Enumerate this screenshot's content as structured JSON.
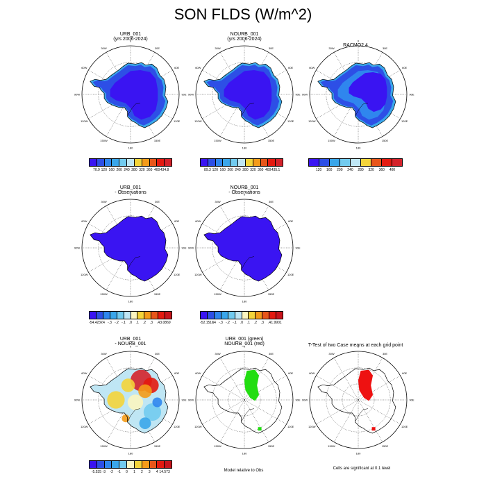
{
  "title": "SON FLDS (W/m^2)",
  "colors": {
    "abs": [
      "#3a14f2",
      "#2d4fe6",
      "#2f86ee",
      "#3aa6ea",
      "#72cbef",
      "#bfe6f4",
      "#f4d43a",
      "#f49b1a",
      "#e8561a",
      "#e31a10",
      "#d4232b"
    ],
    "diff": [
      "#3a14f2",
      "#2d4fe6",
      "#2f86ee",
      "#3aa6ea",
      "#72cbef",
      "#bfe6f4",
      "#fbf5c0",
      "#f4d43a",
      "#f49b1a",
      "#e8561a",
      "#e31a10",
      "#c8141c"
    ],
    "ice_dark": "#3a14f2",
    "ice_edge": "#2d4fe6",
    "ice_coast": "#3aa6ea",
    "racmo_mid": "#2f86ee",
    "significant_green": "#22dd11",
    "significant_red": "#ee1111"
  },
  "lon_labels": [
    "0",
    "30E",
    "60E",
    "90E",
    "120E",
    "150E",
    "180",
    "150W",
    "120W",
    "90W",
    "60W",
    "30W"
  ],
  "panels": [
    {
      "id": "p1",
      "title": [
        "URB_001",
        "(yrs 2006-2024)"
      ],
      "fill": "abs"
    },
    {
      "id": "p2",
      "title": [
        "NOURB_001",
        "(yrs 2006-2024)"
      ],
      "fill": "abs"
    },
    {
      "id": "p3",
      "title": [
        "RACMO2.4"
      ],
      "fill": "racmo"
    },
    {
      "id": "p4",
      "title": [
        "URB_001",
        "- Observations"
      ],
      "fill": "bias"
    },
    {
      "id": "p5",
      "title": [
        "NOURB_001",
        "- Observations"
      ],
      "fill": "bias"
    },
    {
      "id": "p6",
      "title": [
        "URB_001",
        "- NOURB_001"
      ],
      "fill": "diff"
    },
    {
      "id": "p7",
      "title": [
        "URB_001 (green)",
        "NOURB_001 (red)"
      ],
      "fill": "sig_green"
    },
    {
      "id": "p8",
      "title": [
        "T-Test of two Case means at each grid point"
      ],
      "fill": "sig_red"
    }
  ],
  "colorbars": [
    {
      "id": "cb1",
      "labels": [
        "70.9",
        "120",
        "160",
        "200",
        "240",
        "280",
        "320",
        "360",
        "400",
        "434.8"
      ]
    },
    {
      "id": "cb2",
      "labels": [
        "89.3",
        "120",
        "160",
        "200",
        "240",
        "280",
        "320",
        "360",
        "400",
        "435.1"
      ]
    },
    {
      "id": "cb3",
      "labels": [
        "120",
        "160",
        "200",
        "240",
        "280",
        "320",
        "360",
        "400"
      ]
    },
    {
      "id": "cb4",
      "labels": [
        "-54.4237",
        "-.4",
        "-.3",
        "-.2",
        "-.1",
        ".0",
        ".1",
        ".2",
        ".3",
        ".4",
        "3.0869"
      ]
    },
    {
      "id": "cb5",
      "labels": [
        "-52.1518",
        "-.4",
        "-.3",
        "-.2",
        "-.1",
        ".0",
        ".1",
        ".2",
        ".3",
        ".4",
        "1.9901"
      ]
    },
    {
      "id": "cb6",
      "labels": [
        "-5.535",
        "-3",
        "-2",
        "-1",
        "0",
        "1",
        "2",
        "3",
        "4",
        "14.573"
      ]
    }
  ],
  "notes": {
    "model_relative": "Model relative to Obs",
    "cells_significant": "Cells are significant at 0.1 level"
  }
}
